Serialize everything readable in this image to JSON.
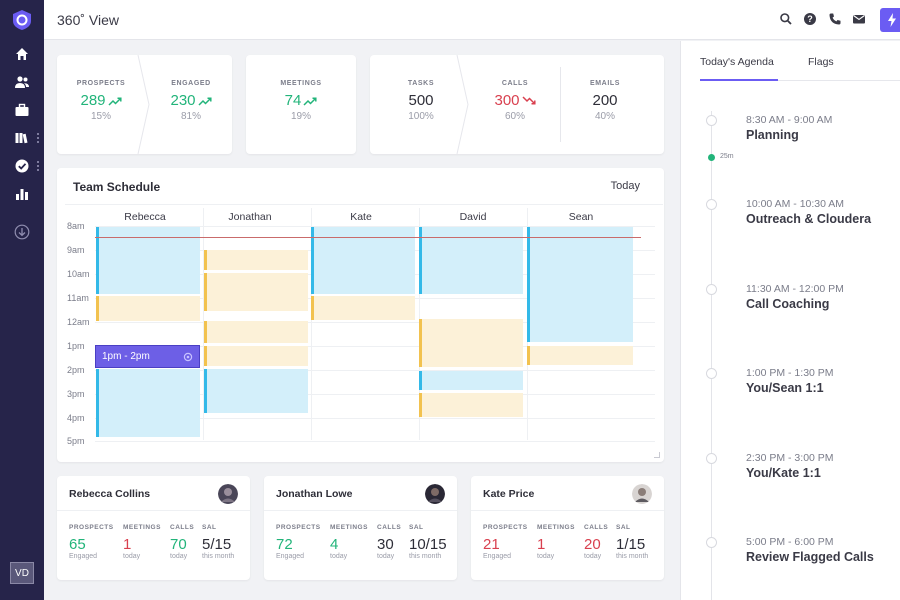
{
  "app": {
    "title": "360˚ View",
    "accent": "#6b5cf3",
    "sidebar_bg": "#26244a",
    "user_initials": "VD"
  },
  "sidebar": {
    "icons": [
      "logo-icon",
      "home-icon",
      "people-icon",
      "briefcase-icon",
      "library-icon",
      "check-circle-icon",
      "bar-chart-icon",
      "download-icon"
    ]
  },
  "topbar": {
    "icons": [
      "search-icon",
      "help-icon",
      "phone-icon",
      "mail-icon",
      "bolt-icon"
    ]
  },
  "stats": {
    "prospects": {
      "label": "PROSPECTS",
      "value": "289",
      "pct": "15%",
      "trend": "up"
    },
    "engaged": {
      "label": "ENGAGED",
      "value": "230",
      "pct": "81%",
      "trend": "up"
    },
    "meetings": {
      "label": "MEETINGS",
      "value": "74",
      "pct": "19%",
      "trend": "up"
    },
    "tasks": {
      "label": "TASKS",
      "value": "500",
      "pct": "100%"
    },
    "calls": {
      "label": "CALLS",
      "value": "300",
      "pct": "60%",
      "trend": "down"
    },
    "emails": {
      "label": "EMAILS",
      "value": "200",
      "pct": "40%"
    }
  },
  "schedule": {
    "title": "Team Schedule",
    "today_label": "Today",
    "people": [
      "Rebecca",
      "Jonathan",
      "Kate",
      "David",
      "Sean"
    ],
    "times": [
      "8am",
      "9am",
      "10am",
      "11am",
      "12am",
      "1pm",
      "2pm",
      "3pm",
      "4pm",
      "5pm"
    ],
    "selected_block": "1pm - 2pm"
  },
  "people_cards": [
    {
      "name": "Rebecca Collins",
      "prospects": {
        "label": "PROSPECTS",
        "value": "65",
        "sub": "Engaged"
      },
      "meetings": {
        "label": "MEETINGS",
        "value": "1",
        "sub": "today"
      },
      "calls": {
        "label": "CALLS",
        "value": "70",
        "sub": "today"
      },
      "sal": {
        "label": "SAL",
        "value": "5/15",
        "sub": "this month"
      }
    },
    {
      "name": "Jonathan Lowe",
      "prospects": {
        "label": "PROSPECTS",
        "value": "72",
        "sub": "Engaged"
      },
      "meetings": {
        "label": "MEETINGS",
        "value": "4",
        "sub": "today"
      },
      "calls": {
        "label": "CALLS",
        "value": "30",
        "sub": "today"
      },
      "sal": {
        "label": "SAL",
        "value": "10/15",
        "sub": "this month"
      }
    },
    {
      "name": "Kate Price",
      "prospects": {
        "label": "PROSPECTS",
        "value": "21",
        "sub": "Engaged"
      },
      "meetings": {
        "label": "MEETINGS",
        "value": "1",
        "sub": "today"
      },
      "calls": {
        "label": "CALLS",
        "value": "20",
        "sub": "today"
      },
      "sal": {
        "label": "SAL",
        "value": "1/15",
        "sub": "this month"
      }
    }
  ],
  "agenda": {
    "tabs": [
      "Today's Agenda",
      "Flags"
    ],
    "live_label": "25m",
    "items": [
      {
        "time": "8:30 AM - 9:00 AM",
        "title": "Planning"
      },
      {
        "time": "10:00 AM - 10:30 AM",
        "title": "Outreach & Cloudera"
      },
      {
        "time": "11:30 AM - 12:00 PM",
        "title": "Call Coaching"
      },
      {
        "time": "1:00 PM - 1:30 PM",
        "title": "You/Sean 1:1"
      },
      {
        "time": "2:30 PM - 3:00 PM",
        "title": "You/Kate 1:1"
      },
      {
        "time": "5:00 PM - 6:00 PM",
        "title": "Review Flagged Calls"
      }
    ]
  }
}
